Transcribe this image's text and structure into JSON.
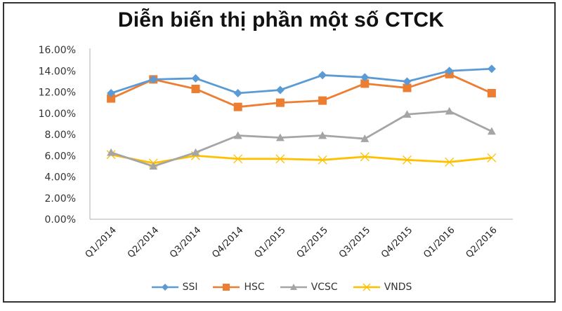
{
  "chart_data": {
    "type": "line",
    "title": "Diễn biến thị phần một số CTCK",
    "xlabel": "",
    "ylabel": "",
    "categories": [
      "Q1/2014",
      "Q2/2014",
      "Q3/2014",
      "Q4/2014",
      "Q1/2015",
      "Q2/2015",
      "Q3/2015",
      "Q4/2015",
      "Q1/2016",
      "Q2/2016"
    ],
    "series": [
      {
        "name": "SSI",
        "color": "#5B9BD5",
        "marker": "diamond",
        "values": [
          11.9,
          13.2,
          13.3,
          11.9,
          12.2,
          13.6,
          13.4,
          13.0,
          14.0,
          14.2
        ]
      },
      {
        "name": "HSC",
        "color": "#ED7D31",
        "marker": "square",
        "values": [
          11.4,
          13.2,
          12.3,
          10.6,
          11.0,
          11.2,
          12.8,
          12.4,
          13.7,
          11.9
        ]
      },
      {
        "name": "VCSC",
        "color": "#A5A5A5",
        "marker": "triangle",
        "values": [
          6.3,
          5.0,
          6.3,
          7.9,
          7.7,
          7.9,
          7.6,
          9.9,
          10.2,
          8.3
        ]
      },
      {
        "name": "VNDS",
        "color": "#FFC000",
        "marker": "x",
        "values": [
          6.1,
          5.3,
          6.0,
          5.7,
          5.7,
          5.6,
          5.9,
          5.6,
          5.4,
          5.8
        ]
      }
    ],
    "ylim": [
      0,
      16
    ],
    "yticks": [
      "0.00%",
      "2.00%",
      "4.00%",
      "6.00%",
      "8.00%",
      "10.00%",
      "12.00%",
      "14.00%",
      "16.00%"
    ],
    "grid": false,
    "legend_position": "bottom"
  }
}
